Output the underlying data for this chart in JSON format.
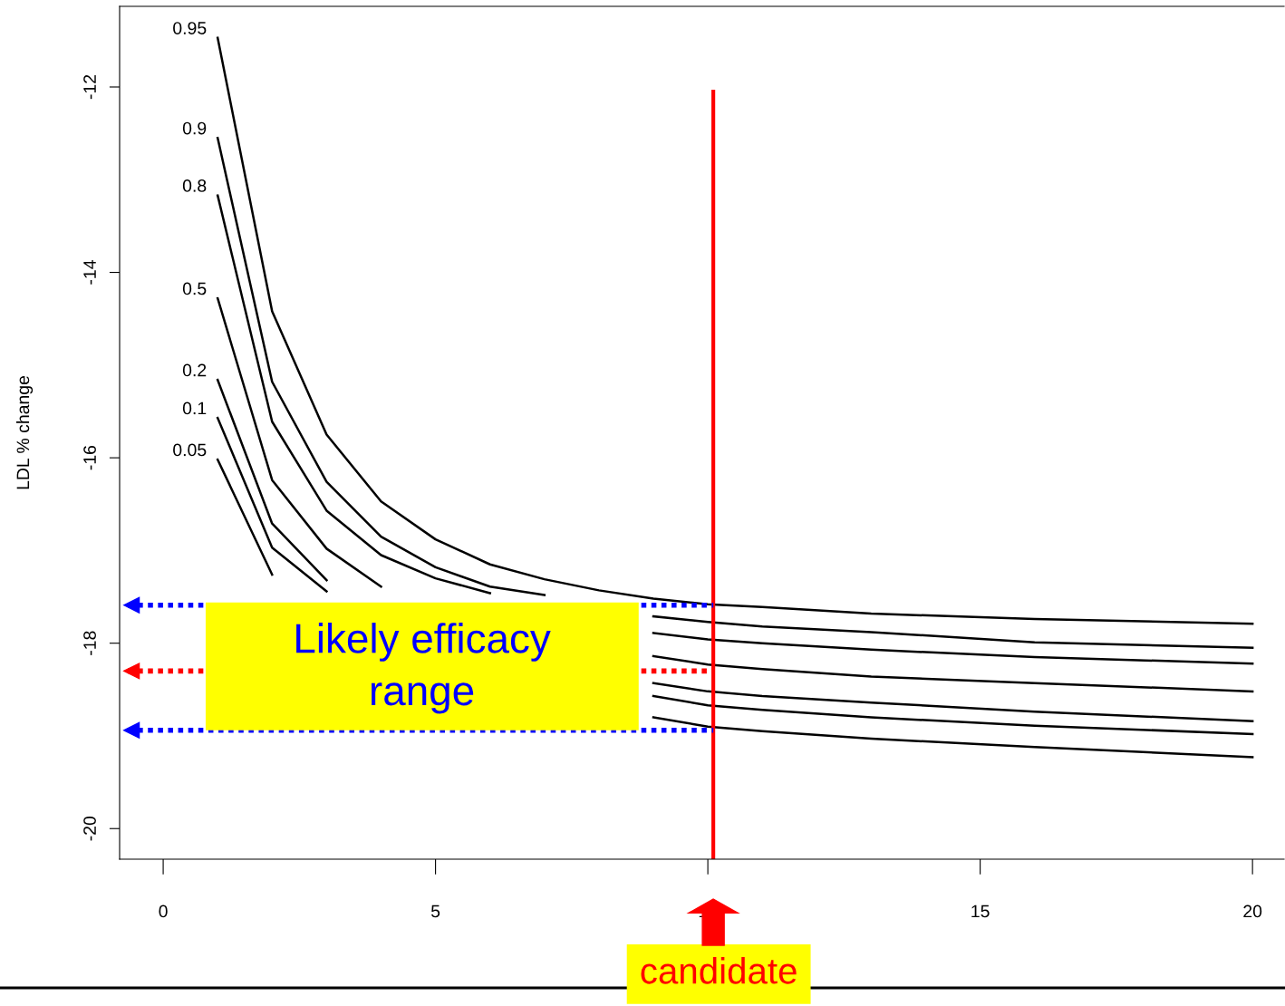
{
  "chart_data": {
    "type": "line",
    "ylabel": "LDL % change",
    "x": [
      1,
      2,
      3,
      4,
      5,
      6,
      7,
      8,
      9,
      10,
      11,
      13,
      16,
      20
    ],
    "series": [
      {
        "name": "0.95",
        "color": "#000000",
        "values": [
          -11.47,
          -14.42,
          -15.75,
          -16.47,
          -16.88,
          -17.15,
          -17.31,
          -17.43,
          -17.52,
          -17.58,
          -17.61,
          -17.68,
          -17.74,
          -17.79
        ]
      },
      {
        "name": "0.9",
        "color": "#000000",
        "values": [
          -12.55,
          -15.18,
          -16.26,
          -16.85,
          -17.18,
          -17.39,
          -17.48,
          null,
          -17.71,
          -17.77,
          -17.82,
          -17.88,
          -17.99,
          -18.05
        ]
      },
      {
        "name": "0.8",
        "color": "#000000",
        "values": [
          -13.17,
          -15.61,
          -16.57,
          -17.05,
          -17.3,
          -17.46,
          null,
          null,
          -17.89,
          -17.96,
          -18.0,
          -18.07,
          -18.15,
          -18.22
        ]
      },
      {
        "name": "0.5",
        "color": "#000000",
        "values": [
          -14.28,
          -16.24,
          -16.98,
          -17.39,
          null,
          null,
          null,
          null,
          -18.14,
          -18.23,
          -18.28,
          -18.36,
          -18.43,
          -18.52
        ]
      },
      {
        "name": "0.2",
        "color": "#000000",
        "values": [
          -15.16,
          -16.71,
          -17.32,
          null,
          null,
          null,
          null,
          null,
          -18.43,
          -18.52,
          -18.57,
          -18.64,
          -18.74,
          -18.84
        ]
      },
      {
        "name": "0.1",
        "color": "#000000",
        "values": [
          -15.57,
          -16.97,
          -17.44,
          null,
          null,
          null,
          null,
          null,
          -18.57,
          -18.67,
          -18.72,
          -18.8,
          -18.89,
          -18.98
        ]
      },
      {
        "name": "0.05",
        "color": "#000000",
        "values": [
          -16.02,
          -17.26,
          null,
          null,
          null,
          null,
          null,
          null,
          -18.8,
          -18.9,
          -18.95,
          -19.03,
          -19.12,
          -19.23
        ]
      }
    ],
    "xlim": [
      -0.8,
      20.58
    ],
    "ylim": [
      -20.33,
      -11.13
    ],
    "xticks": [
      0,
      5,
      10,
      15,
      20
    ],
    "yticks": [
      -12,
      -14,
      -16,
      -18,
      -20
    ],
    "grid": false,
    "legend": false,
    "line_style": "solid",
    "marker": "none",
    "ref_lines": [
      {
        "axis": "x",
        "value": 10.1,
        "label": null,
        "color": "#ff0000",
        "line_style": "solid"
      },
      {
        "axis": "y",
        "value": -17.59,
        "label": null,
        "color": "#0000ff",
        "line_style": "dotted"
      },
      {
        "axis": "y",
        "value": -18.3,
        "label": null,
        "color": "#ff0000",
        "line_style": "dotted"
      },
      {
        "axis": "y",
        "value": -18.94,
        "label": null,
        "color": "#0000ff",
        "line_style": "dotted"
      }
    ],
    "annotations": [
      "Likely efficacy range",
      "candidate"
    ]
  }
}
